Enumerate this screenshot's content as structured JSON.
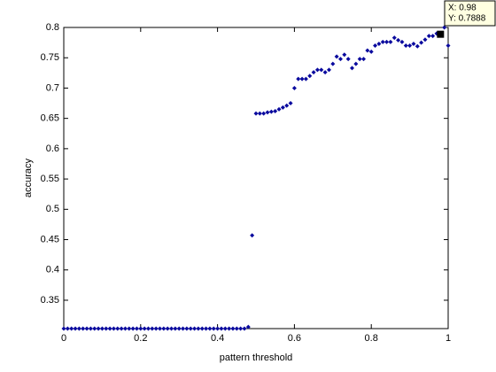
{
  "chart_data": {
    "type": "scatter",
    "xlabel": "pattern threshold",
    "ylabel": "accuracy",
    "series": [
      {
        "color": "#0a0a9e",
        "x": [
          0,
          0.01,
          0.02,
          0.03,
          0.04,
          0.05,
          0.06,
          0.07,
          0.08,
          0.09,
          0.1,
          0.11,
          0.12,
          0.13,
          0.14,
          0.15,
          0.16,
          0.17,
          0.18,
          0.19,
          0.2,
          0.21,
          0.22,
          0.23,
          0.24,
          0.25,
          0.26,
          0.27,
          0.28,
          0.29,
          0.3,
          0.31,
          0.32,
          0.33,
          0.34,
          0.35,
          0.36,
          0.37,
          0.38,
          0.39,
          0.4,
          0.41,
          0.42,
          0.43,
          0.44,
          0.45,
          0.46,
          0.47,
          0.48,
          0.49,
          0.5,
          0.51,
          0.52,
          0.53,
          0.54,
          0.55,
          0.56,
          0.57,
          0.58,
          0.59,
          0.6,
          0.61,
          0.62,
          0.63,
          0.64,
          0.65,
          0.66,
          0.67,
          0.68,
          0.69,
          0.7,
          0.71,
          0.72,
          0.73,
          0.74,
          0.75,
          0.76,
          0.77,
          0.78,
          0.79,
          0.8,
          0.81,
          0.82,
          0.83,
          0.84,
          0.85,
          0.86,
          0.87,
          0.88,
          0.89,
          0.9,
          0.91,
          0.92,
          0.93,
          0.94,
          0.95,
          0.96,
          0.97,
          0.98,
          0.99,
          1
        ],
        "values": [
          0.3032,
          0.3032,
          0.3032,
          0.3032,
          0.3032,
          0.3032,
          0.3032,
          0.3032,
          0.3032,
          0.3032,
          0.3032,
          0.3032,
          0.3032,
          0.3032,
          0.3032,
          0.3032,
          0.3032,
          0.3032,
          0.3032,
          0.3032,
          0.3032,
          0.3032,
          0.3032,
          0.3032,
          0.3032,
          0.3032,
          0.3032,
          0.3032,
          0.3032,
          0.3032,
          0.3032,
          0.3032,
          0.3032,
          0.3032,
          0.3032,
          0.3032,
          0.3032,
          0.3032,
          0.3032,
          0.3032,
          0.3032,
          0.3032,
          0.3032,
          0.3032,
          0.3032,
          0.3032,
          0.3032,
          0.3032,
          0.306,
          0.457,
          0.658,
          0.658,
          0.658,
          0.66,
          0.661,
          0.662,
          0.665,
          0.668,
          0.671,
          0.675,
          0.7,
          0.715,
          0.715,
          0.715,
          0.72,
          0.726,
          0.73,
          0.73,
          0.726,
          0.73,
          0.74,
          0.752,
          0.748,
          0.755,
          0.748,
          0.733,
          0.74,
          0.748,
          0.748,
          0.762,
          0.76,
          0.77,
          0.773,
          0.776,
          0.776,
          0.776,
          0.783,
          0.779,
          0.776,
          0.77,
          0.77,
          0.773,
          0.769,
          0.775,
          0.78,
          0.786,
          0.786,
          0.79,
          0.7888,
          0.8,
          0.77
        ]
      }
    ],
    "xlim": [
      0,
      1
    ],
    "xticks": [
      0,
      0.2,
      0.4,
      0.6,
      0.8,
      1
    ],
    "ylim": [
      0.3032,
      0.8
    ],
    "yticks": [
      0.35,
      0.4,
      0.45,
      0.5,
      0.55,
      0.6,
      0.65,
      0.7,
      0.75,
      0.8
    ],
    "grid": false,
    "datatip": {
      "index": 98,
      "labels": [
        "X: 0.98",
        "Y: 0.7888"
      ]
    }
  }
}
